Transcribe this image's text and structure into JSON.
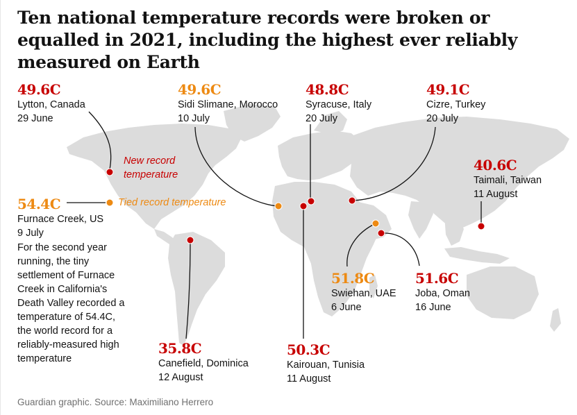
{
  "title": "Ten national temperature records were broken or equalled in 2021, including the highest ever reliably measured on Earth",
  "legend": {
    "new_label": "New record temperature",
    "tied_label": "Tied record temperature"
  },
  "colors": {
    "new": "#c70000",
    "tied": "#ed8a13",
    "land": "#dcdcdc"
  },
  "records": {
    "lytton": {
      "temp": "49.6C",
      "place": "Lytton, Canada",
      "date": "29 June",
      "type": "new"
    },
    "furnace": {
      "temp": "54.4C",
      "place": "Furnace Creek, US",
      "date": "9 July",
      "type": "tied",
      "note": "For the second year running, the tiny settlement of Furnace Creek in California's Death Valley recorded a temperature of 54.4C, the world record for a reliably-measured high temperature"
    },
    "canefield": {
      "temp": "35.8C",
      "place": "Canefield, Dominica",
      "date": "12 August",
      "type": "new"
    },
    "sidi": {
      "temp": "49.6C",
      "place": "Sidi Slimane, Morocco",
      "date": "10 July",
      "type": "tied"
    },
    "syracuse": {
      "temp": "48.8C",
      "place": "Syracuse, Italy",
      "date": "20 July",
      "type": "new"
    },
    "cizre": {
      "temp": "49.1C",
      "place": "Cizre, Turkey",
      "date": "20 July",
      "type": "new"
    },
    "kairouan": {
      "temp": "50.3C",
      "place": "Kairouan, Tunisia",
      "date": "11 August",
      "type": "new"
    },
    "swiehan": {
      "temp": "51.8C",
      "place": "Swiehan, UAE",
      "date": "6 June",
      "type": "tied"
    },
    "joba": {
      "temp": "51.6C",
      "place": "Joba, Oman",
      "date": "16 June",
      "type": "new"
    },
    "taimali": {
      "temp": "40.6C",
      "place": "Taimali, Taiwan",
      "date": "11 August",
      "type": "new"
    }
  },
  "source": "Guardian graphic. Source: Maximiliano Herrero"
}
